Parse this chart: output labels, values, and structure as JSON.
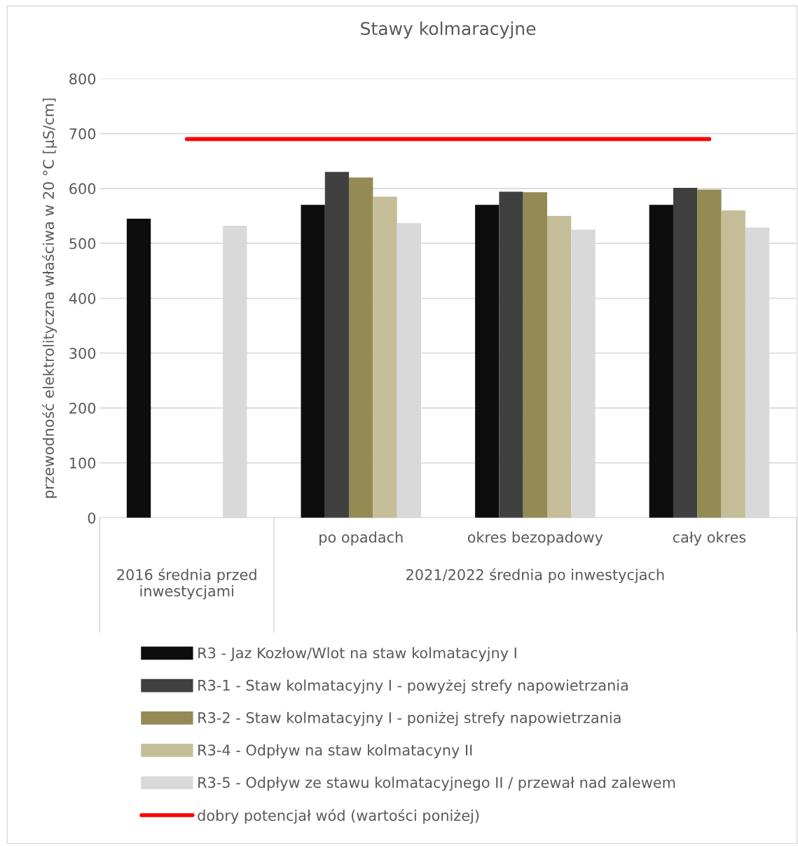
{
  "chart_data": {
    "type": "bar",
    "title": "Stawy kolmaracyjne",
    "ylabel": "przewodność elektrolityczna właściwa w 20 °C [µS/cm]",
    "categories": [
      null,
      "po opadach",
      "okres bezopadowy",
      "cały okres"
    ],
    "annotations": [
      "2016 średnia przed inwestycjami",
      "2021/2022 średnia po inwestycjach"
    ],
    "series": [
      {
        "name": "R3 - Jaz Kozłow/Wlot na staw kolmatacyjny I",
        "color": "#0d0d0d",
        "values": [
          545,
          570,
          570,
          570
        ]
      },
      {
        "name": "R3-1 - Staw kolmatacyjny I - powyżej strefy napowietrzania",
        "color": "#404040",
        "values": [
          null,
          630,
          594,
          601
        ]
      },
      {
        "name": "R3-2 - Staw kolmatacyjny I - poniżej strefy napowietrzania",
        "color": "#948a54",
        "values": [
          null,
          620,
          593,
          598
        ]
      },
      {
        "name": "R3-4 - Odpływ na staw kolmatacyny II",
        "color": "#c4bd97",
        "values": [
          null,
          585,
          550,
          560
        ]
      },
      {
        "name": "R3-5 - Odpływ ze stawu kolmatacyjnego II / przewał nad zalewem",
        "color": "#d9d9d9",
        "values": [
          532,
          537,
          525,
          529
        ]
      },
      {
        "name": "dobry potencjał wód (wartości poniżej)",
        "color": "#ff0000",
        "type": "line",
        "values": [
          690,
          690,
          690,
          690
        ]
      }
    ],
    "ylim": [
      0,
      800
    ],
    "yticks": [
      0,
      100,
      200,
      300,
      400,
      500,
      600,
      700,
      800
    ],
    "grid": "y",
    "legend": "bottom"
  }
}
